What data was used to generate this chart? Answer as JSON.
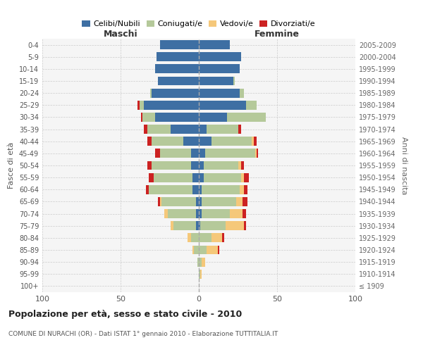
{
  "age_groups": [
    "100+",
    "95-99",
    "90-94",
    "85-89",
    "80-84",
    "75-79",
    "70-74",
    "65-69",
    "60-64",
    "55-59",
    "50-54",
    "45-49",
    "40-44",
    "35-39",
    "30-34",
    "25-29",
    "20-24",
    "15-19",
    "10-14",
    "5-9",
    "0-4"
  ],
  "birth_years": [
    "≤ 1909",
    "1910-1914",
    "1915-1919",
    "1920-1924",
    "1925-1929",
    "1930-1934",
    "1935-1939",
    "1940-1944",
    "1945-1949",
    "1950-1954",
    "1955-1959",
    "1960-1964",
    "1965-1969",
    "1970-1974",
    "1975-1979",
    "1980-1984",
    "1985-1989",
    "1990-1994",
    "1995-1999",
    "2000-2004",
    "2005-2009"
  ],
  "colors": {
    "celibi": "#3e6fa3",
    "coniugati": "#b5c99a",
    "vedovi": "#f5c87a",
    "divorziati": "#cc2222"
  },
  "maschi": {
    "celibi": [
      0,
      0,
      0,
      0,
      0,
      2,
      2,
      2,
      4,
      4,
      5,
      5,
      10,
      18,
      28,
      35,
      30,
      26,
      28,
      27,
      25
    ],
    "coniugati": [
      0,
      0,
      1,
      3,
      5,
      14,
      18,
      22,
      28,
      25,
      25,
      20,
      20,
      15,
      8,
      3,
      1,
      0,
      0,
      0,
      0
    ],
    "vedovi": [
      0,
      0,
      0,
      1,
      2,
      2,
      2,
      1,
      0,
      0,
      0,
      0,
      0,
      0,
      0,
      0,
      0,
      0,
      0,
      0,
      0
    ],
    "divorziati": [
      0,
      0,
      0,
      0,
      0,
      0,
      0,
      1,
      2,
      3,
      3,
      3,
      3,
      2,
      1,
      1,
      0,
      0,
      0,
      0,
      0
    ]
  },
  "femmine": {
    "celibi": [
      0,
      0,
      0,
      0,
      0,
      1,
      2,
      2,
      2,
      3,
      3,
      4,
      8,
      5,
      18,
      30,
      26,
      22,
      26,
      27,
      20
    ],
    "coniugati": [
      0,
      1,
      2,
      5,
      8,
      16,
      18,
      22,
      24,
      24,
      22,
      32,
      26,
      20,
      25,
      7,
      3,
      1,
      0,
      0,
      0
    ],
    "vedovi": [
      0,
      1,
      2,
      7,
      7,
      12,
      8,
      4,
      3,
      2,
      2,
      1,
      1,
      0,
      0,
      0,
      0,
      0,
      0,
      0,
      0
    ],
    "divorziati": [
      0,
      0,
      0,
      1,
      1,
      1,
      2,
      3,
      2,
      3,
      2,
      1,
      2,
      2,
      0,
      0,
      0,
      0,
      0,
      0,
      0
    ]
  },
  "title": "Popolazione per età, sesso e stato civile - 2010",
  "subtitle": "COMUNE DI NURACHI (OR) - Dati ISTAT 1° gennaio 2010 - Elaborazione TUTTITALIA.IT",
  "xlabel_left": "Maschi",
  "xlabel_right": "Femmine",
  "ylabel_left": "Fasce di età",
  "ylabel_right": "Anni di nascita",
  "xlim": 100,
  "bg_color": "#ffffff",
  "grid_color": "#cccccc"
}
